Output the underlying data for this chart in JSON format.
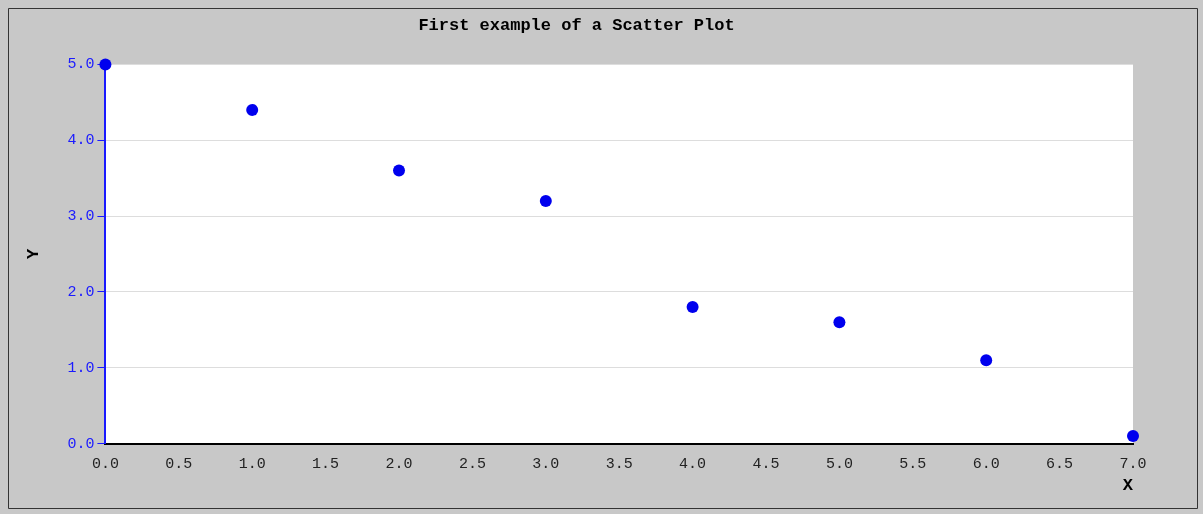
{
  "chart_data": {
    "type": "scatter",
    "title": "First example of a Scatter Plot",
    "xlabel": "X",
    "ylabel": "Y",
    "x": [
      0,
      1,
      2,
      3,
      4,
      5,
      6,
      7
    ],
    "series": [
      {
        "color": "#0000ee",
        "values": [
          5.0,
          4.4,
          3.6,
          3.2,
          1.8,
          1.6,
          1.1,
          0.1
        ]
      }
    ],
    "xlim": [
      0,
      7
    ],
    "ylim": [
      0,
      5
    ],
    "xticks": [
      {
        "value": 0,
        "label": "0.0"
      },
      0.5,
      {
        "value": 1,
        "label": "1.0"
      },
      1.5,
      {
        "value": 2,
        "label": "2.0"
      },
      2.5,
      {
        "value": 3,
        "label": "3.0"
      },
      3.5,
      {
        "value": 4,
        "label": "4.0"
      },
      4.5,
      {
        "value": 5,
        "label": "5.0"
      },
      5.5,
      {
        "value": 6,
        "label": "6.0"
      },
      6.5,
      {
        "value": 7,
        "label": "7.0"
      }
    ],
    "yticks": [
      {
        "value": 0,
        "label": "0.0"
      },
      {
        "value": 1,
        "label": "1.0"
      },
      {
        "value": 2,
        "label": "2.0"
      },
      {
        "value": 3,
        "label": "3.0"
      },
      {
        "value": 4,
        "label": "4.0"
      },
      {
        "value": 5,
        "label": "5.0"
      }
    ],
    "grid": "y",
    "legend": false,
    "marker": "circle"
  }
}
